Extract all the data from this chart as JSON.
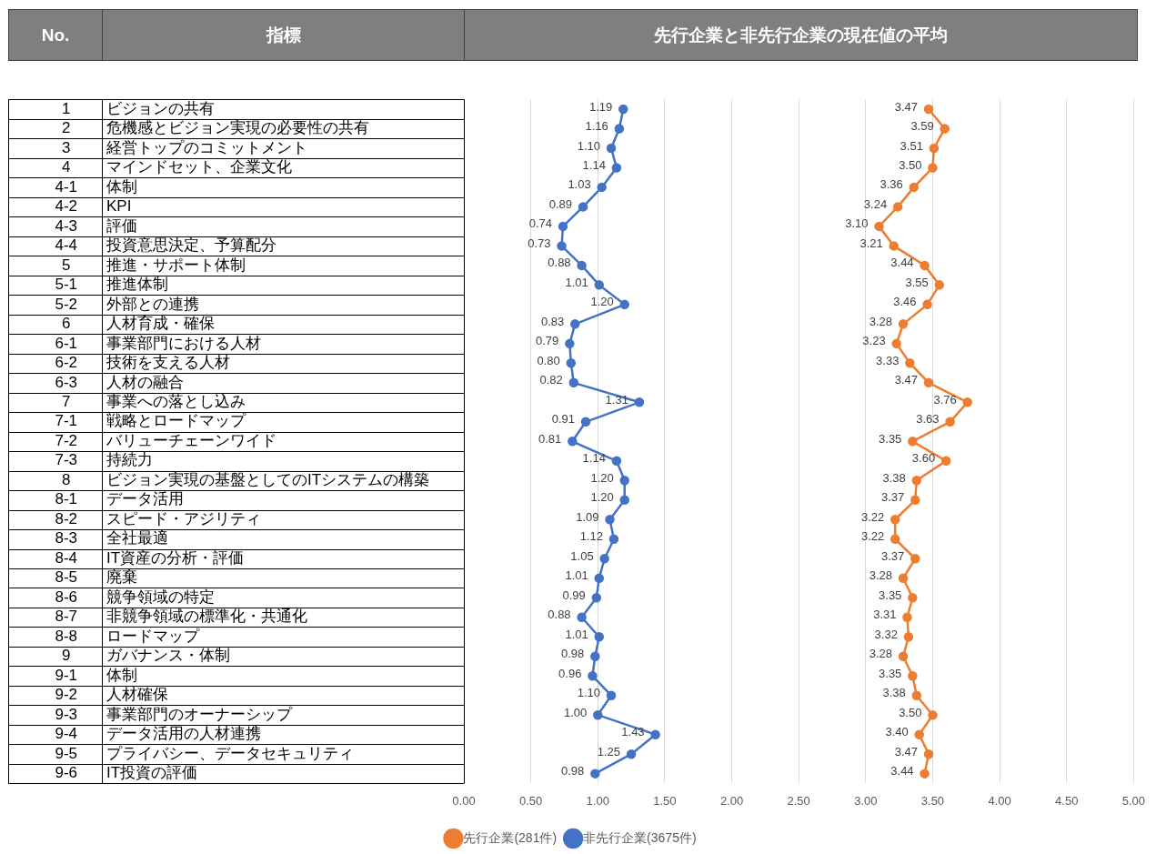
{
  "chart_data": {
    "type": "line",
    "orientation": "horizontal",
    "title": "先行企業と非先行企業の現在値の平均",
    "ylabel": "指標",
    "y2label": "No.",
    "categories": [
      "ビジョンの共有",
      "危機感とビジョン実現の必要性の共有",
      "経営トップのコミットメント",
      "マインドセット、企業文化",
      "体制",
      "KPI",
      "評価",
      "投資意思決定、予算配分",
      "推進・サポート体制",
      "推進体制",
      "外部との連携",
      "人材育成・確保",
      "事業部門における人材",
      "技術を支える人材",
      "人材の融合",
      "事業への落とし込み",
      "戦略とロードマップ",
      "バリューチェーンワイド",
      "持続力",
      "ビジョン実現の基盤としてのITシステムの構築",
      "データ活用",
      "スピード・アジリティ",
      "全社最適",
      "IT資産の分析・評価",
      "廃棄",
      "競争領域の特定",
      "非競争領域の標準化・共通化",
      "ロードマップ",
      "ガバナンス・体制",
      "体制",
      "人材確保",
      "事業部門のオーナーシップ",
      "データ活用の人材連携",
      "プライバシー、データセキュリティ",
      "IT投資の評価"
    ],
    "y2_categories": [
      "1",
      "2",
      "3",
      "4",
      "4-1",
      "4-2",
      "4-3",
      "4-4",
      "5",
      "5-1",
      "5-2",
      "6",
      "6-1",
      "6-2",
      "6-3",
      "7",
      "7-1",
      "7-2",
      "7-3",
      "8",
      "8-1",
      "8-2",
      "8-3",
      "8-4",
      "8-5",
      "8-6",
      "8-7",
      "8-8",
      "9",
      "9-1",
      "9-2",
      "9-3",
      "9-4",
      "9-5",
      "9-6"
    ],
    "series": [
      {
        "name": "先行企業(281件)",
        "color": "#ed7d31",
        "values": [
          3.47,
          3.59,
          3.51,
          3.5,
          3.36,
          3.24,
          3.1,
          3.21,
          3.44,
          3.55,
          3.46,
          3.28,
          3.23,
          3.33,
          3.47,
          3.76,
          3.63,
          3.35,
          3.6,
          3.38,
          3.37,
          3.22,
          3.22,
          3.37,
          3.28,
          3.35,
          3.31,
          3.32,
          3.28,
          3.35,
          3.38,
          3.5,
          3.4,
          3.47,
          3.44
        ],
        "value_labels": [
          "3.47",
          "3.59",
          "3.51",
          "3.50",
          "3.36",
          "3.24",
          "3.10",
          "3.21",
          "3.44",
          "3.55",
          "3.46",
          "3.28",
          "3.23",
          "3.33",
          "3.47",
          "3.76",
          "3.63",
          "3.35",
          "3.60",
          "3.38",
          "3.37",
          "3.22",
          "3.22",
          "3.37",
          "3.28",
          "3.35",
          "3.31",
          "3.32",
          "3.28",
          "3.35",
          "3.38",
          "3.50",
          "3.40",
          "3.47",
          "3.44"
        ]
      },
      {
        "name": "非先行企業(3675件)",
        "color": "#4472c4",
        "values": [
          1.19,
          1.16,
          1.1,
          1.14,
          1.03,
          0.89,
          0.74,
          0.73,
          0.88,
          1.01,
          1.2,
          0.83,
          0.79,
          0.8,
          0.82,
          1.31,
          0.91,
          0.81,
          1.14,
          1.2,
          1.2,
          1.09,
          1.12,
          1.05,
          1.01,
          0.99,
          0.88,
          1.01,
          0.98,
          0.96,
          1.1,
          1.0,
          1.43,
          1.25,
          0.98
        ],
        "value_labels": [
          "1.19",
          "1.16",
          "1.10",
          "1.14",
          "1.03",
          "0.89",
          "0.74",
          "0.73",
          "0.88",
          "1.01",
          "1.20",
          "0.83",
          "0.79",
          "0.80",
          "0.82",
          "1.31",
          "0.91",
          "0.81",
          "1.14",
          "1.20",
          "1.20",
          "1.09",
          "1.12",
          "1.05",
          "1.01",
          "0.99",
          "0.88",
          "1.01",
          "0.98",
          "0.96",
          "1.10",
          "1.00",
          "1.43",
          "1.25",
          "0.98"
        ]
      }
    ],
    "xlim": [
      0,
      5
    ],
    "xticks": [
      {
        "value": 0,
        "label": "0.00"
      },
      {
        "value": 0.5,
        "label": "0.50"
      },
      {
        "value": 1,
        "label": "1.00"
      },
      {
        "value": 1.5,
        "label": "1.50"
      },
      {
        "value": 2,
        "label": "2.00"
      },
      {
        "value": 2.5,
        "label": "2.50"
      },
      {
        "value": 3,
        "label": "3.00"
      },
      {
        "value": 3.5,
        "label": "3.50"
      },
      {
        "value": 4,
        "label": "4.00"
      },
      {
        "value": 4.5,
        "label": "4.50"
      },
      {
        "value": 5,
        "label": "5.00"
      }
    ],
    "grid": "x",
    "legend": "bottom",
    "marker": "circle",
    "line_style": "solid"
  }
}
